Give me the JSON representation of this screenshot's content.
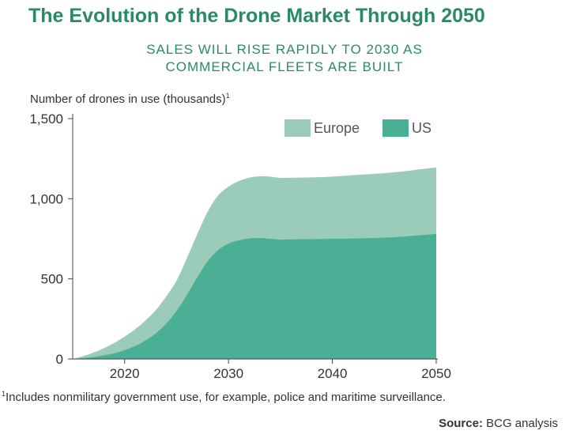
{
  "header": {
    "title": "The Evolution of the Drone Market Through 2050",
    "subtitle_line1": "SALES WILL RISE RAPIDLY TO 2030 AS",
    "subtitle_line2": "COMMERCIAL FLEETS ARE BUILT"
  },
  "footnote": {
    "marker": "1",
    "text": "Includes nonmilitary government use, for example, police and maritime surveillance."
  },
  "source": {
    "label": "Source:",
    "text": " BCG analysis"
  },
  "colors": {
    "us": "#4aaf94",
    "europe": "#9bcbb9",
    "accent": "#2a8a68"
  },
  "chart_data": {
    "type": "area",
    "stacked": true,
    "title": "",
    "ylabel": "Number of drones in use (thousands)",
    "ylabel_footnote_marker": "1",
    "xlabel": "",
    "xlim": [
      2015,
      2050
    ],
    "ylim": [
      0,
      1500
    ],
    "x_ticks": [
      2020,
      2030,
      2040,
      2050
    ],
    "x_tick_labels": [
      "2020",
      "2030",
      "2040",
      "2050"
    ],
    "y_ticks": [
      0,
      500,
      1000,
      1500
    ],
    "y_tick_labels": [
      "0",
      "500",
      "1,000",
      "1,500"
    ],
    "grid": false,
    "legend_position": "top-right",
    "x": [
      2015,
      2016,
      2017,
      2018,
      2019,
      2020,
      2021,
      2022,
      2023,
      2024,
      2025,
      2026,
      2027,
      2028,
      2029,
      2030,
      2031,
      2032,
      2033,
      2034,
      2035,
      2036,
      2038,
      2040,
      2042,
      2044,
      2046,
      2048,
      2050
    ],
    "series": [
      {
        "name": "US",
        "color_key": "us",
        "values": [
          0,
          5,
          12,
          22,
          35,
          55,
          80,
          115,
          160,
          220,
          300,
          400,
          510,
          610,
          680,
          720,
          740,
          752,
          755,
          750,
          745,
          746,
          748,
          750,
          752,
          755,
          760,
          770,
          780
        ]
      },
      {
        "name": "Europe",
        "color_key": "europe",
        "values": [
          0,
          12,
          28,
          45,
          65,
          85,
          105,
          125,
          145,
          170,
          190,
          230,
          270,
          310,
          340,
          355,
          370,
          380,
          385,
          388,
          385,
          385,
          385,
          388,
          395,
          400,
          405,
          410,
          415
        ]
      }
    ]
  }
}
